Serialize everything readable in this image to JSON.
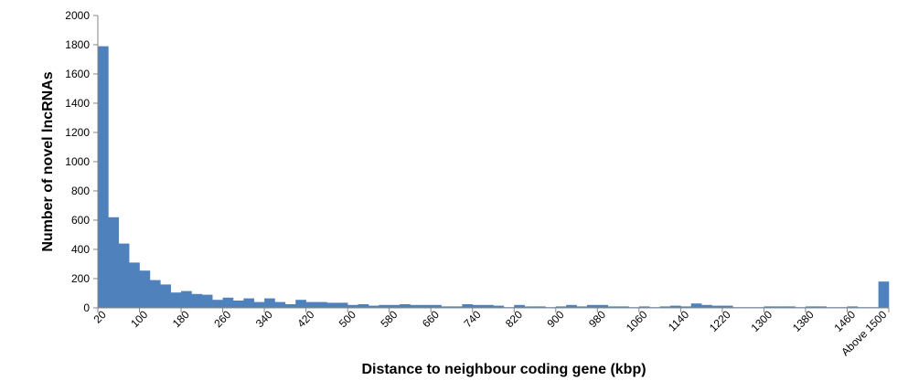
{
  "chart_data": {
    "type": "bar",
    "title": "",
    "xlabel": "Distance to neighbour coding gene (kbp)",
    "ylabel": "Number of novel lncRNAs",
    "ylim": [
      0,
      2000
    ],
    "yticks": [
      "0",
      "200",
      "400",
      "600",
      "800",
      "1000",
      "1200",
      "1400",
      "1600",
      "1800",
      "2000"
    ],
    "grid": false,
    "legend": "none",
    "bar_color": "#4f81bd",
    "categories": [
      "20",
      "40",
      "60",
      "80",
      "100",
      "120",
      "140",
      "160",
      "180",
      "200",
      "220",
      "240",
      "260",
      "280",
      "300",
      "320",
      "340",
      "360",
      "380",
      "400",
      "420",
      "440",
      "460",
      "480",
      "500",
      "520",
      "540",
      "560",
      "580",
      "600",
      "620",
      "640",
      "660",
      "680",
      "700",
      "720",
      "740",
      "760",
      "780",
      "800",
      "820",
      "840",
      "860",
      "880",
      "900",
      "920",
      "940",
      "960",
      "980",
      "1000",
      "1020",
      "1040",
      "1060",
      "1080",
      "1100",
      "1120",
      "1140",
      "1160",
      "1180",
      "1200",
      "1220",
      "1240",
      "1260",
      "1280",
      "1300",
      "1320",
      "1340",
      "1360",
      "1380",
      "1400",
      "1420",
      "1440",
      "1460",
      "1480",
      "1500",
      "Above 1500"
    ],
    "values": [
      1790,
      620,
      440,
      310,
      255,
      190,
      160,
      105,
      115,
      95,
      90,
      55,
      70,
      50,
      65,
      40,
      65,
      40,
      25,
      55,
      40,
      40,
      35,
      35,
      20,
      25,
      15,
      20,
      20,
      25,
      20,
      20,
      20,
      10,
      10,
      25,
      20,
      20,
      15,
      5,
      20,
      10,
      10,
      5,
      10,
      20,
      10,
      20,
      20,
      10,
      10,
      5,
      10,
      5,
      10,
      15,
      10,
      30,
      20,
      15,
      15,
      5,
      5,
      5,
      10,
      10,
      10,
      5,
      10,
      10,
      5,
      5,
      10,
      5,
      5,
      180
    ],
    "xtick_labels": [
      "20",
      "100",
      "180",
      "260",
      "340",
      "420",
      "500",
      "580",
      "660",
      "740",
      "820",
      "900",
      "980",
      "1060",
      "1140",
      "1220",
      "1300",
      "1380",
      "1460",
      "Above 1500"
    ]
  }
}
